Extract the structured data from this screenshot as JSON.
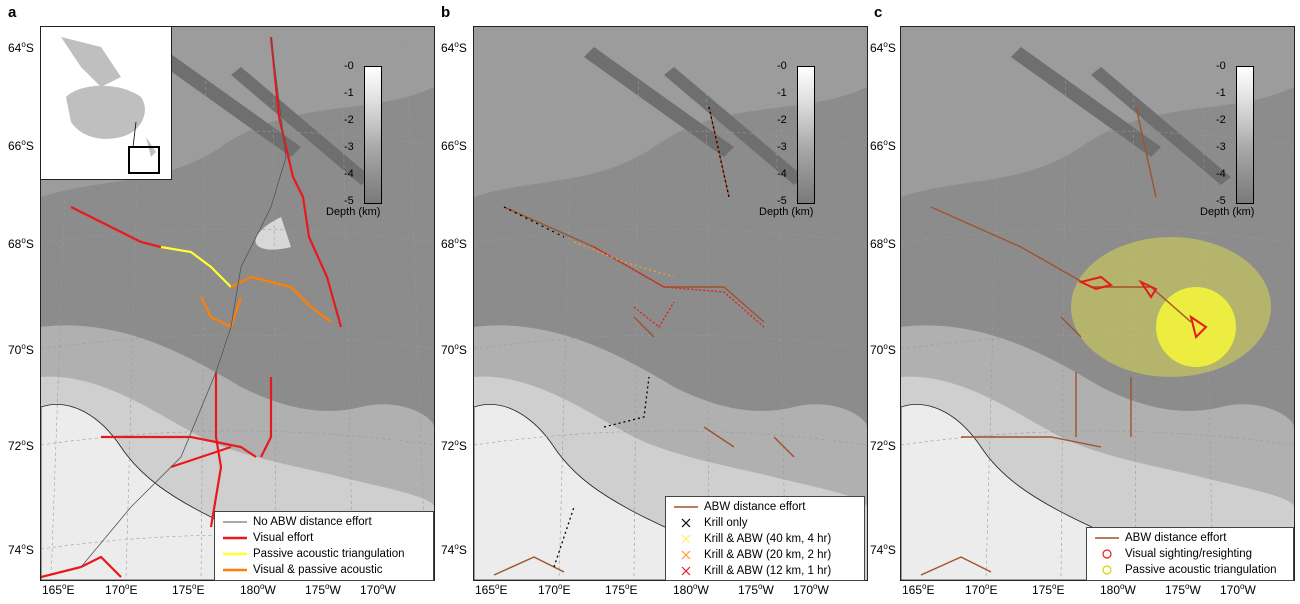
{
  "panels": [
    {
      "letter": "a",
      "lat_labels": [
        "64",
        "66",
        "68",
        "70",
        "72",
        "74"
      ],
      "lon_labels": [
        "165",
        "170",
        "175",
        "180",
        "175",
        "170"
      ],
      "lon_hemi": [
        "E",
        "E",
        "E",
        "W",
        "W",
        "W"
      ],
      "colorbar": {
        "ticks": [
          "-0",
          "-1",
          "-2",
          "-3",
          "-4",
          "-5"
        ],
        "label": "Depth (km)"
      },
      "legend": [
        {
          "label": "No ABW distance effort",
          "symbol": "line",
          "color": "#555555"
        },
        {
          "label": "Visual effort",
          "symbol": "line",
          "color": "#e8191c"
        },
        {
          "label": "Passive acoustic triangulation",
          "symbol": "line",
          "color": "#ffff33"
        },
        {
          "label": "Visual & passive acoustic",
          "symbol": "line",
          "color": "#ff7f00"
        }
      ]
    },
    {
      "letter": "b",
      "lat_labels": [
        "64",
        "66",
        "68",
        "70",
        "72",
        "74"
      ],
      "lon_labels": [
        "165",
        "170",
        "175",
        "180",
        "175",
        "170"
      ],
      "lon_hemi": [
        "E",
        "E",
        "E",
        "W",
        "W",
        "W"
      ],
      "colorbar": {
        "ticks": [
          "-0",
          "-1",
          "-2",
          "-3",
          "-4",
          "-5"
        ],
        "label": "Depth (km)"
      },
      "legend": [
        {
          "label": "ABW distance effort",
          "symbol": "line",
          "color": "#a0522d"
        },
        {
          "label": "Krill only",
          "symbol": "x",
          "color": "#000000"
        },
        {
          "label": "Krill & ABW (40 km, 4 hr)",
          "symbol": "x",
          "color": "#ffee66"
        },
        {
          "label": "Krill & ABW (20 km, 2 hr)",
          "symbol": "x",
          "color": "#ff9933"
        },
        {
          "label": "Krill & ABW (12 km, 1 hr)",
          "symbol": "x",
          "color": "#e8191c"
        }
      ]
    },
    {
      "letter": "c",
      "lat_labels": [
        "64",
        "66",
        "68",
        "70",
        "72",
        "74"
      ],
      "lon_labels": [
        "165",
        "170",
        "175",
        "180",
        "175",
        "170"
      ],
      "lon_hemi": [
        "E",
        "E",
        "E",
        "W",
        "W",
        "W"
      ],
      "colorbar": {
        "ticks": [
          "-0",
          "-1",
          "-2",
          "-3",
          "-4",
          "-5"
        ],
        "label": "Depth (km)"
      },
      "legend": [
        {
          "label": "ABW distance effort",
          "symbol": "line",
          "color": "#a0522d"
        },
        {
          "label": "Visual sighting/resighting",
          "symbol": "circle",
          "color": "#e8191c"
        },
        {
          "label": "Passive acoustic triangulation",
          "symbol": "circle",
          "color": "#ffff33"
        }
      ]
    }
  ],
  "units": {
    "lat_suffix": "S",
    "degree": "o"
  },
  "colors": {
    "land": "#ececec",
    "shelf": "#cfcfcf",
    "slope": "#b0b0b0",
    "deep": "#8c8c8c",
    "ridge": "#6f6f6f"
  }
}
